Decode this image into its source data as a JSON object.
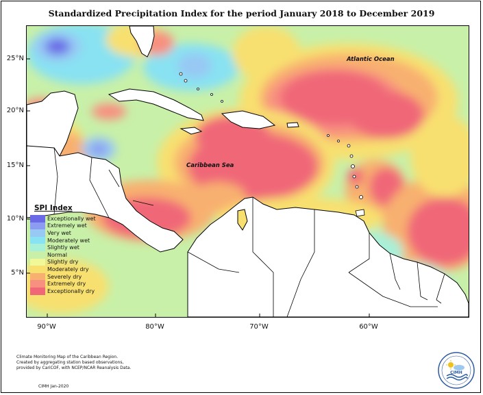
{
  "title": "Standardized Precipitation Index for the period January 2018 to December 2019",
  "labels": {
    "atlantic": "Atlantic Ocean",
    "caribbean": "Caribbean Sea"
  },
  "axes": {
    "latitude_ticks": [
      "25°N",
      "20°N",
      "15°N",
      "10°N",
      "5°N"
    ],
    "longitude_ticks": [
      "90°W",
      "80°W",
      "70°W",
      "60°W"
    ]
  },
  "legend": {
    "title": "SPI Index",
    "items": [
      {
        "label": "Exceptionally wet",
        "color": "#6a6ae6"
      },
      {
        "label": "Extremely wet",
        "color": "#8c9cf0"
      },
      {
        "label": "Very wet",
        "color": "#98c8f4"
      },
      {
        "label": "Moderately wet",
        "color": "#88e2f2"
      },
      {
        "label": "Slightly wet",
        "color": "#a8f0d8"
      },
      {
        "label": "Normal",
        "color": "#c8f0a8"
      },
      {
        "label": "Slightly dry",
        "color": "#f0f898"
      },
      {
        "label": "Moderately dry",
        "color": "#f8e070"
      },
      {
        "label": "Severely dry",
        "color": "#f8b070"
      },
      {
        "label": "Extremely dry",
        "color": "#f89080"
      },
      {
        "label": "Exceptionally dry",
        "color": "#f06878"
      }
    ]
  },
  "footer": {
    "line1": "Climate Monitoring Map of the Caribbean Region.",
    "line2": "Created by aggregating station based observations,",
    "line3": "provided by CariCOF, with NCEP/NCAR Reanalysis Data.",
    "credit": "CIMH Jan-2020"
  },
  "logo": {
    "text": "CIMH",
    "icon": "cimh-sun-cloud-logo"
  }
}
